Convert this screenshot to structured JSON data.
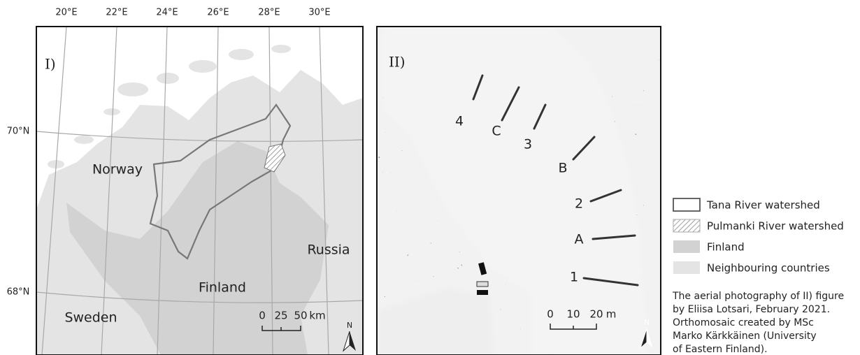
{
  "panel_1": {
    "label": "I)",
    "longitudes": [
      "20°E",
      "22°E",
      "24°E",
      "26°E",
      "28°E",
      "30°E"
    ],
    "latitudes": [
      "70°N",
      "68°N"
    ],
    "countries": [
      "Norway",
      "Finland",
      "Russia",
      "Sweden"
    ],
    "scale_bar": {
      "ticks": [
        0,
        25,
        50
      ],
      "unit": "km"
    },
    "north": "N"
  },
  "panel_2": {
    "label": "II)",
    "sites": [
      "4",
      "C",
      "3",
      "B",
      "2",
      "A",
      "1"
    ],
    "scale_bar": {
      "ticks": [
        0,
        10,
        20
      ],
      "unit": "m"
    },
    "north": "N"
  },
  "legend": [
    "Tana River watershed",
    "Pulmanki River watershed",
    "Finland",
    "Neighbouring countries"
  ],
  "caption": [
    "The aerial photography of II) figure",
    "by Eliisa Lotsari, February 2021.",
    "Orthomosaic created by MSc",
    "Marko Kärkkäinen (University",
    "of Eastern Finland)."
  ]
}
